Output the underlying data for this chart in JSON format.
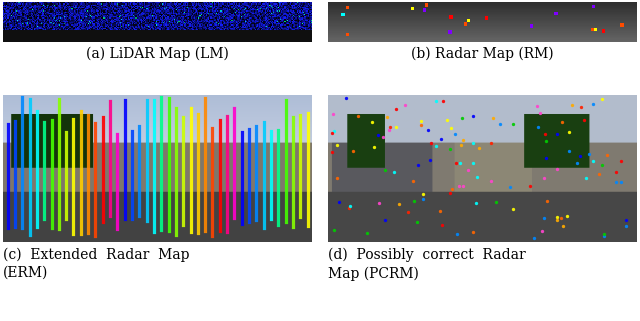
{
  "figsize": [
    6.4,
    3.21
  ],
  "dpi": 100,
  "background": "#ffffff",
  "caption_fontsize": 10.0,
  "caption_fontfamily": "serif",
  "panels": {
    "a": {
      "label": "(a) LiDAR Map (LM)",
      "multiline": false
    },
    "b": {
      "label": "(b) Radar Map (RM)",
      "multiline": false
    },
    "c": {
      "label": "(c)  Extended  Radar  Map\n(ERM)",
      "multiline": true
    },
    "d": {
      "label": "(d)  Possibly  correct  Radar\nMap (PCRM)",
      "multiline": true
    }
  },
  "bar_colors": [
    "#0000ff",
    "#0044ff",
    "#0088ff",
    "#00ccff",
    "#00ffff",
    "#00ff88",
    "#44ff00",
    "#88ff00",
    "#ccff00",
    "#ffff00",
    "#ffcc00",
    "#ff8800",
    "#ff4400",
    "#ff0000",
    "#ff0088",
    "#ff00cc"
  ],
  "dot_colors": [
    "#ff2200",
    "#ff6600",
    "#ffaa00",
    "#ffff00",
    "#00ffff",
    "#0088ff",
    "#0000ff",
    "#ff44cc",
    "#ff0000",
    "#00cc00"
  ]
}
